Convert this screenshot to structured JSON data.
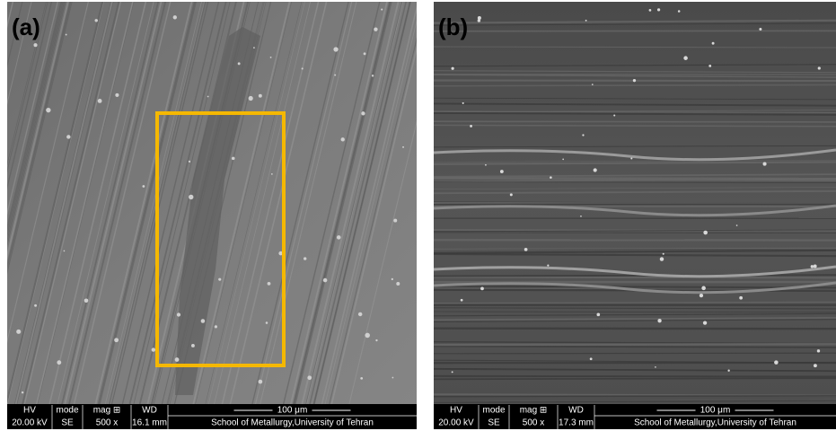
{
  "panels": [
    {
      "label": "(a)",
      "info": {
        "headers": [
          "HV",
          "mode",
          "mag ⊞",
          "WD"
        ],
        "values": [
          "20.00 kV",
          "SE",
          "500 x",
          "16.1 mm"
        ],
        "scale": "100 μm",
        "institution": "School of Metallurgy,University of Tehran"
      }
    },
    {
      "label": "(b)",
      "info": {
        "headers": [
          "HV",
          "mode",
          "mag ⊞",
          "WD"
        ],
        "values": [
          "20.00 kV",
          "SE",
          "500 x",
          "17.3 mm"
        ],
        "scale": "100 μm",
        "institution": "School of Metallurgy,University of Tehran"
      }
    }
  ]
}
